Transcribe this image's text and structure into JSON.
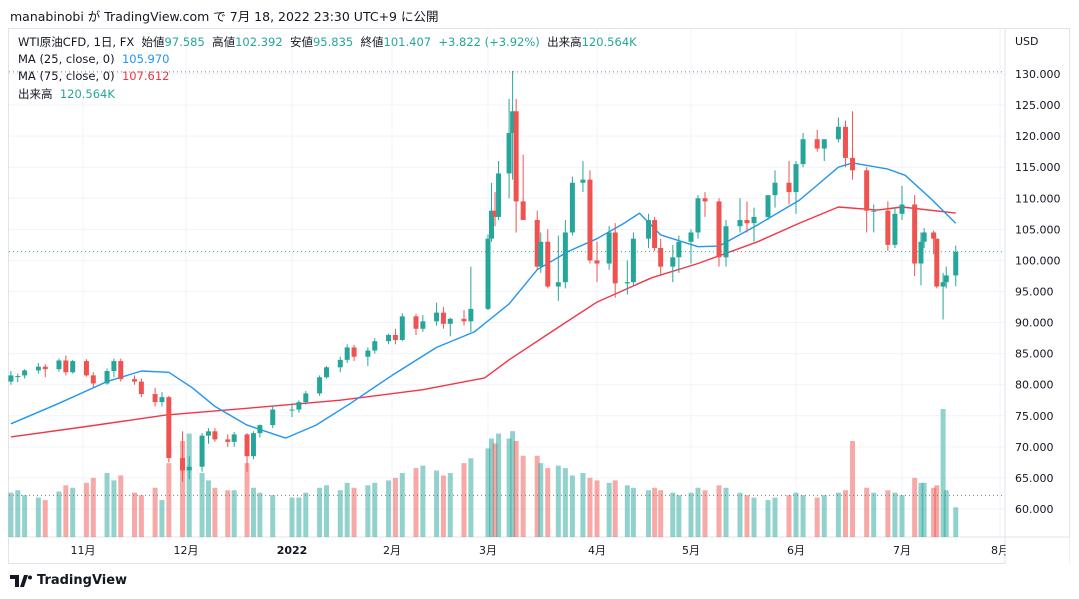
{
  "publish_line": "manabinobi が TradingView.com で 7月 18, 2022 23:30 UTC+9 に公開",
  "legend": {
    "symbol": "WTI原油CFD, 1日, FX",
    "open_label": "始値",
    "open": "97.585",
    "high_label": "高値",
    "high": "102.392",
    "low_label": "安値",
    "low": "95.835",
    "close_label": "終値",
    "close": "101.407",
    "change": "+3.822 (+3.92%)",
    "volume_label": "出来高",
    "volume": "120.564K",
    "ma25_label": "MA (25, close, 0)",
    "ma25_value": "105.970",
    "ma75_label": "MA (75, close, 0)",
    "ma75_value": "107.612",
    "vol_label": "出来高",
    "vol_value": "120.564K"
  },
  "footer": {
    "brand": "TradingView"
  },
  "colors": {
    "up": "#26a69a",
    "down": "#ef5350",
    "ma25": "#2196f3",
    "ma75": "#f23645",
    "vol_up": "#26a69a80",
    "vol_down": "#ef535080"
  },
  "chart_data": {
    "type": "candlestick",
    "currency": "USD",
    "y_ticks": [
      "130.000",
      "125.000",
      "120.000",
      "115.000",
      "110.000",
      "105.000",
      "100.000",
      "95.000",
      "90.000",
      "85.000",
      "80.000",
      "75.000",
      "70.000",
      "65.000",
      "60.000"
    ],
    "x_ticks": [
      {
        "label": "11月",
        "date": "2021-11-01"
      },
      {
        "label": "12月",
        "date": "2021-12-01"
      },
      {
        "label": "2022",
        "date": "2022-01-03"
      },
      {
        "label": "2月",
        "date": "2022-02-01"
      },
      {
        "label": "3月",
        "date": "2022-03-01"
      },
      {
        "label": "4月",
        "date": "2022-04-01"
      },
      {
        "label": "5月",
        "date": "2022-05-02"
      },
      {
        "label": "6月",
        "date": "2022-06-01"
      },
      {
        "label": "7月",
        "date": "2022-07-01"
      },
      {
        "label": "8月",
        "date": "2022-08-01"
      }
    ],
    "grid": true,
    "last_price": 101.407,
    "columns": [
      "date",
      "open",
      "high",
      "low",
      "close",
      "volume_k"
    ],
    "candles": [
      [
        "2021-10-11",
        80.5,
        82.2,
        80.0,
        81.5,
        180
      ],
      [
        "2021-10-13",
        81.3,
        81.8,
        80.4,
        81.4,
        190
      ],
      [
        "2021-10-15",
        81.5,
        82.5,
        81.0,
        82.3,
        170
      ],
      [
        "2021-10-19",
        82.3,
        83.5,
        81.8,
        82.9,
        160
      ],
      [
        "2021-10-21",
        82.9,
        83.3,
        81.2,
        82.5,
        150
      ],
      [
        "2021-10-25",
        82.5,
        84.2,
        82.1,
        83.9,
        185
      ],
      [
        "2021-10-27",
        83.9,
        84.7,
        81.5,
        82.0,
        210
      ],
      [
        "2021-10-29",
        82.0,
        84.0,
        81.8,
        83.8,
        200
      ],
      [
        "2021-11-02",
        83.8,
        84.1,
        81.3,
        81.5,
        220
      ],
      [
        "2021-11-04",
        81.5,
        82.0,
        79.6,
        80.2,
        240
      ],
      [
        "2021-11-08",
        80.2,
        82.6,
        80.0,
        82.2,
        260
      ],
      [
        "2021-11-10",
        82.2,
        84.2,
        81.2,
        83.8,
        230
      ],
      [
        "2021-11-12",
        83.8,
        84.2,
        80.5,
        80.9,
        250
      ],
      [
        "2021-11-16",
        80.9,
        81.5,
        80.0,
        80.5,
        180
      ],
      [
        "2021-11-18",
        80.5,
        81.0,
        78.0,
        78.5,
        170
      ],
      [
        "2021-11-22",
        78.5,
        79.5,
        76.5,
        77.2,
        200
      ],
      [
        "2021-11-24",
        77.2,
        78.8,
        76.5,
        78.0,
        150
      ],
      [
        "2021-11-26",
        78.0,
        78.2,
        67.5,
        68.2,
        300
      ],
      [
        "2021-11-30",
        68.2,
        72.5,
        64.4,
        66.2,
        390
      ],
      [
        "2021-12-02",
        66.2,
        68.5,
        64.8,
        66.8,
        420
      ],
      [
        "2021-12-06",
        66.8,
        72.2,
        66.0,
        71.8,
        260
      ],
      [
        "2021-12-08",
        71.8,
        73.0,
        70.5,
        72.5,
        230
      ],
      [
        "2021-12-10",
        72.5,
        73.0,
        70.8,
        71.2,
        200
      ],
      [
        "2021-12-14",
        71.2,
        72.0,
        70.0,
        70.8,
        190
      ],
      [
        "2021-12-16",
        70.8,
        72.4,
        70.0,
        72.0,
        190
      ],
      [
        "2021-12-20",
        72.0,
        72.2,
        66.0,
        68.5,
        300
      ],
      [
        "2021-12-22",
        68.5,
        72.5,
        68.0,
        72.2,
        200
      ],
      [
        "2021-12-24",
        72.2,
        73.6,
        71.5,
        73.5,
        180
      ],
      [
        "2021-12-28",
        73.5,
        76.5,
        73.0,
        76.0,
        170
      ],
      [
        "2022-01-03",
        76.0,
        77.0,
        74.8,
        76.0,
        160
      ],
      [
        "2022-01-05",
        76.0,
        77.5,
        75.5,
        77.2,
        160
      ],
      [
        "2022-01-07",
        77.2,
        79.0,
        76.8,
        78.6,
        180
      ],
      [
        "2022-01-11",
        78.6,
        81.5,
        78.2,
        81.2,
        200
      ],
      [
        "2022-01-13",
        81.2,
        83.0,
        81.0,
        82.8,
        210
      ],
      [
        "2022-01-17",
        82.8,
        84.5,
        82.0,
        84.0,
        190
      ],
      [
        "2022-01-19",
        84.0,
        86.5,
        83.5,
        86.0,
        220
      ],
      [
        "2022-01-21",
        86.0,
        86.4,
        83.8,
        84.5,
        200
      ],
      [
        "2022-01-25",
        84.5,
        86.0,
        83.0,
        85.5,
        210
      ],
      [
        "2022-01-27",
        85.5,
        87.5,
        85.0,
        87.0,
        220
      ],
      [
        "2022-01-31",
        87.0,
        88.2,
        86.5,
        88.0,
        230
      ],
      [
        "2022-02-02",
        88.0,
        89.0,
        86.5,
        87.2,
        240
      ],
      [
        "2022-02-04",
        87.2,
        91.5,
        87.0,
        91.0,
        260
      ],
      [
        "2022-02-08",
        91.0,
        91.4,
        88.0,
        89.0,
        280
      ],
      [
        "2022-02-10",
        89.0,
        91.2,
        88.5,
        90.2,
        290
      ],
      [
        "2022-02-14",
        90.2,
        93.2,
        89.5,
        91.6,
        270
      ],
      [
        "2022-02-16",
        91.6,
        92.5,
        89.0,
        89.8,
        250
      ],
      [
        "2022-02-18",
        89.8,
        90.8,
        87.8,
        90.6,
        260
      ],
      [
        "2022-02-22",
        90.6,
        92.0,
        89.5,
        90.2,
        300
      ],
      [
        "2022-02-24",
        90.2,
        99.0,
        88.5,
        92.2,
        320
      ],
      [
        "2022-03-01",
        92.2,
        104.2,
        92.0,
        103.5,
        360
      ],
      [
        "2022-03-02",
        103.5,
        112.5,
        103.0,
        108.0,
        400
      ],
      [
        "2022-03-03",
        108.0,
        111.0,
        105.5,
        107.0,
        380
      ],
      [
        "2022-03-04",
        107.0,
        116.0,
        106.5,
        114.0,
        420
      ],
      [
        "2022-03-07",
        114.0,
        126.0,
        110.0,
        120.5,
        400
      ],
      [
        "2022-03-08",
        120.5,
        130.5,
        113.0,
        124.0,
        430
      ],
      [
        "2022-03-09",
        124.0,
        126.0,
        104.5,
        109.5,
        390
      ],
      [
        "2022-03-11",
        109.5,
        117.0,
        106.5,
        106.5,
        330
      ],
      [
        "2022-03-15",
        106.5,
        108.0,
        98.5,
        99.0,
        330
      ],
      [
        "2022-03-16",
        99.0,
        104.5,
        98.0,
        103.0,
        300
      ],
      [
        "2022-03-18",
        103.0,
        105.0,
        95.5,
        95.8,
        280
      ],
      [
        "2022-03-21",
        95.8,
        104.0,
        93.5,
        96.5,
        290
      ],
      [
        "2022-03-23",
        96.5,
        106.5,
        95.5,
        104.5,
        280
      ],
      [
        "2022-03-25",
        104.5,
        113.5,
        104.0,
        112.5,
        250
      ],
      [
        "2022-03-28",
        112.5,
        116.0,
        111.0,
        113.0,
        260
      ],
      [
        "2022-03-30",
        113.0,
        114.5,
        99.5,
        100.0,
        240
      ],
      [
        "2022-04-01",
        100.0,
        103.0,
        96.5,
        99.5,
        230
      ],
      [
        "2022-04-05",
        99.5,
        105.5,
        98.5,
        104.5,
        220
      ],
      [
        "2022-04-07",
        104.5,
        106.0,
        94.0,
        96.3,
        230
      ],
      [
        "2022-04-11",
        96.3,
        100.0,
        94.5,
        96.5,
        210
      ],
      [
        "2022-04-13",
        96.5,
        104.5,
        96.0,
        103.5,
        200
      ],
      [
        "2022-04-18",
        103.5,
        107.5,
        102.0,
        106.5,
        190
      ],
      [
        "2022-04-20",
        106.5,
        107.0,
        101.5,
        102.0,
        200
      ],
      [
        "2022-04-22",
        102.0,
        103.5,
        97.5,
        99.0,
        190
      ],
      [
        "2022-04-26",
        99.0,
        102.5,
        96.5,
        100.5,
        180
      ],
      [
        "2022-04-28",
        100.5,
        104.0,
        98.0,
        103.0,
        170
      ],
      [
        "2022-05-02",
        103.0,
        105.0,
        99.5,
        104.5,
        180
      ],
      [
        "2022-05-04",
        104.5,
        110.5,
        103.5,
        110.0,
        200
      ],
      [
        "2022-05-06",
        110.0,
        111.0,
        107.0,
        109.5,
        190
      ],
      [
        "2022-05-10",
        109.5,
        110.0,
        99.0,
        100.5,
        210
      ],
      [
        "2022-05-12",
        100.5,
        106.5,
        99.0,
        105.5,
        200
      ],
      [
        "2022-05-16",
        105.5,
        110.0,
        104.5,
        106.5,
        180
      ],
      [
        "2022-05-18",
        106.5,
        109.5,
        104.5,
        106.0,
        170
      ],
      [
        "2022-05-20",
        106.0,
        108.5,
        103.0,
        107.0,
        160
      ],
      [
        "2022-05-24",
        107.0,
        110.5,
        106.5,
        110.5,
        150
      ],
      [
        "2022-05-26",
        110.5,
        114.5,
        108.5,
        112.5,
        160
      ],
      [
        "2022-05-30",
        112.5,
        116.0,
        109.0,
        111.0,
        170
      ],
      [
        "2022-06-01",
        111.0,
        116.0,
        107.5,
        115.5,
        180
      ],
      [
        "2022-06-03",
        115.5,
        120.5,
        115.0,
        119.5,
        170
      ],
      [
        "2022-06-07",
        119.5,
        121.0,
        117.5,
        118.0,
        160
      ],
      [
        "2022-06-09",
        118.0,
        119.5,
        116.0,
        119.5,
        170
      ],
      [
        "2022-06-13",
        119.5,
        123.0,
        119.0,
        121.5,
        180
      ],
      [
        "2022-06-15",
        121.5,
        122.5,
        115.0,
        116.5,
        190
      ],
      [
        "2022-06-17",
        116.5,
        124.0,
        113.0,
        114.5,
        390
      ],
      [
        "2022-06-21",
        114.5,
        115.0,
        104.5,
        108.0,
        200
      ],
      [
        "2022-06-23",
        108.0,
        109.0,
        104.5,
        108.0,
        180
      ],
      [
        "2022-06-27",
        108.0,
        109.5,
        101.5,
        102.5,
        190
      ],
      [
        "2022-06-29",
        102.5,
        108.5,
        102.0,
        107.5,
        180
      ],
      [
        "2022-07-01",
        107.5,
        112.0,
        106.5,
        109.0,
        170
      ],
      [
        "2022-07-05",
        109.0,
        110.5,
        97.5,
        99.5,
        240
      ],
      [
        "2022-07-07",
        99.5,
        104.5,
        96.0,
        103.0,
        220
      ],
      [
        "2022-07-08",
        103.0,
        105.2,
        102.0,
        104.5,
        220
      ],
      [
        "2022-07-11",
        104.5,
        104.8,
        101.0,
        103.5,
        200
      ],
      [
        "2022-07-12",
        103.5,
        103.5,
        95.5,
        95.8,
        210
      ],
      [
        "2022-07-14",
        95.8,
        98.0,
        90.5,
        96.5,
        520
      ],
      [
        "2022-07-15",
        96.5,
        99.0,
        95.5,
        97.585,
        190
      ],
      [
        "2022-07-18",
        97.585,
        102.392,
        95.835,
        101.407,
        120.564
      ]
    ],
    "ma25": [
      [
        "2021-10-11",
        73.7
      ],
      [
        "2021-10-25",
        77.0
      ],
      [
        "2021-11-08",
        80.5
      ],
      [
        "2021-11-18",
        82.2
      ],
      [
        "2021-11-26",
        82.0
      ],
      [
        "2021-12-03",
        79.5
      ],
      [
        "2021-12-10",
        76.5
      ],
      [
        "2021-12-20",
        73.5
      ],
      [
        "2022-01-01",
        71.4
      ],
      [
        "2022-01-10",
        73.5
      ],
      [
        "2022-01-20",
        77.0
      ],
      [
        "2022-02-01",
        81.5
      ],
      [
        "2022-02-14",
        86.0
      ],
      [
        "2022-02-25",
        88.5
      ],
      [
        "2022-03-07",
        93.0
      ],
      [
        "2022-03-15",
        98.5
      ],
      [
        "2022-03-24",
        101.5
      ],
      [
        "2022-04-01",
        103.5
      ],
      [
        "2022-04-10",
        106.0
      ],
      [
        "2022-04-15",
        107.6
      ],
      [
        "2022-04-22",
        104.1
      ],
      [
        "2022-05-04",
        102.2
      ],
      [
        "2022-05-10",
        102.3
      ],
      [
        "2022-05-21",
        105.7
      ],
      [
        "2022-06-02",
        109.7
      ],
      [
        "2022-06-13",
        115.0
      ],
      [
        "2022-06-17",
        115.7
      ],
      [
        "2022-06-27",
        114.7
      ],
      [
        "2022-07-02",
        113.7
      ],
      [
        "2022-07-10",
        110.0
      ],
      [
        "2022-07-18",
        105.97
      ]
    ],
    "ma75": [
      [
        "2021-10-11",
        71.6
      ],
      [
        "2021-11-01",
        73.2
      ],
      [
        "2021-11-25",
        75.1
      ],
      [
        "2021-12-20",
        76.2
      ],
      [
        "2022-01-17",
        77.5
      ],
      [
        "2022-02-10",
        79.2
      ],
      [
        "2022-02-28",
        81.1
      ],
      [
        "2022-03-07",
        84.0
      ],
      [
        "2022-03-22",
        89.6
      ],
      [
        "2022-04-01",
        93.3
      ],
      [
        "2022-04-19",
        97.2
      ],
      [
        "2022-05-04",
        99.5
      ],
      [
        "2022-05-21",
        103.0
      ],
      [
        "2022-06-02",
        106.0
      ],
      [
        "2022-06-13",
        108.6
      ],
      [
        "2022-06-24",
        108.1
      ],
      [
        "2022-07-01",
        108.6
      ],
      [
        "2022-07-18",
        107.612
      ]
    ]
  }
}
